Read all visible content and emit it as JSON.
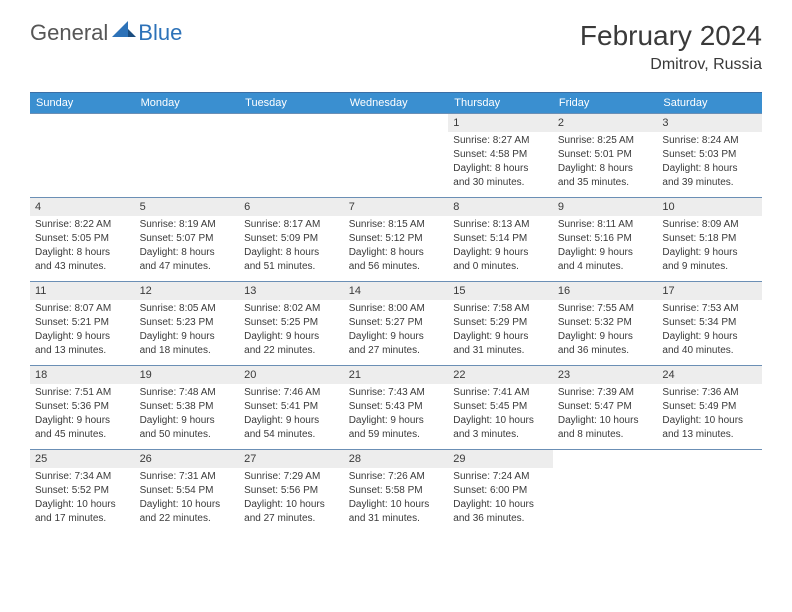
{
  "brand": {
    "general": "General",
    "blue": "Blue"
  },
  "title": "February 2024",
  "location": "Dmitrov, Russia",
  "day_headers": [
    "Sunday",
    "Monday",
    "Tuesday",
    "Wednesday",
    "Thursday",
    "Friday",
    "Saturday"
  ],
  "header_bg": "#3a8fd0",
  "header_fg": "#ffffff",
  "border_color": "#6b8fb5",
  "daynum_bg": "#ededed",
  "days": [
    {
      "n": "",
      "sr": "",
      "ss": "",
      "dl1": "",
      "dl2": ""
    },
    {
      "n": "",
      "sr": "",
      "ss": "",
      "dl1": "",
      "dl2": ""
    },
    {
      "n": "",
      "sr": "",
      "ss": "",
      "dl1": "",
      "dl2": ""
    },
    {
      "n": "",
      "sr": "",
      "ss": "",
      "dl1": "",
      "dl2": ""
    },
    {
      "n": "1",
      "sr": "Sunrise: 8:27 AM",
      "ss": "Sunset: 4:58 PM",
      "dl1": "Daylight: 8 hours",
      "dl2": "and 30 minutes."
    },
    {
      "n": "2",
      "sr": "Sunrise: 8:25 AM",
      "ss": "Sunset: 5:01 PM",
      "dl1": "Daylight: 8 hours",
      "dl2": "and 35 minutes."
    },
    {
      "n": "3",
      "sr": "Sunrise: 8:24 AM",
      "ss": "Sunset: 5:03 PM",
      "dl1": "Daylight: 8 hours",
      "dl2": "and 39 minutes."
    },
    {
      "n": "4",
      "sr": "Sunrise: 8:22 AM",
      "ss": "Sunset: 5:05 PM",
      "dl1": "Daylight: 8 hours",
      "dl2": "and 43 minutes."
    },
    {
      "n": "5",
      "sr": "Sunrise: 8:19 AM",
      "ss": "Sunset: 5:07 PM",
      "dl1": "Daylight: 8 hours",
      "dl2": "and 47 minutes."
    },
    {
      "n": "6",
      "sr": "Sunrise: 8:17 AM",
      "ss": "Sunset: 5:09 PM",
      "dl1": "Daylight: 8 hours",
      "dl2": "and 51 minutes."
    },
    {
      "n": "7",
      "sr": "Sunrise: 8:15 AM",
      "ss": "Sunset: 5:12 PM",
      "dl1": "Daylight: 8 hours",
      "dl2": "and 56 minutes."
    },
    {
      "n": "8",
      "sr": "Sunrise: 8:13 AM",
      "ss": "Sunset: 5:14 PM",
      "dl1": "Daylight: 9 hours",
      "dl2": "and 0 minutes."
    },
    {
      "n": "9",
      "sr": "Sunrise: 8:11 AM",
      "ss": "Sunset: 5:16 PM",
      "dl1": "Daylight: 9 hours",
      "dl2": "and 4 minutes."
    },
    {
      "n": "10",
      "sr": "Sunrise: 8:09 AM",
      "ss": "Sunset: 5:18 PM",
      "dl1": "Daylight: 9 hours",
      "dl2": "and 9 minutes."
    },
    {
      "n": "11",
      "sr": "Sunrise: 8:07 AM",
      "ss": "Sunset: 5:21 PM",
      "dl1": "Daylight: 9 hours",
      "dl2": "and 13 minutes."
    },
    {
      "n": "12",
      "sr": "Sunrise: 8:05 AM",
      "ss": "Sunset: 5:23 PM",
      "dl1": "Daylight: 9 hours",
      "dl2": "and 18 minutes."
    },
    {
      "n": "13",
      "sr": "Sunrise: 8:02 AM",
      "ss": "Sunset: 5:25 PM",
      "dl1": "Daylight: 9 hours",
      "dl2": "and 22 minutes."
    },
    {
      "n": "14",
      "sr": "Sunrise: 8:00 AM",
      "ss": "Sunset: 5:27 PM",
      "dl1": "Daylight: 9 hours",
      "dl2": "and 27 minutes."
    },
    {
      "n": "15",
      "sr": "Sunrise: 7:58 AM",
      "ss": "Sunset: 5:29 PM",
      "dl1": "Daylight: 9 hours",
      "dl2": "and 31 minutes."
    },
    {
      "n": "16",
      "sr": "Sunrise: 7:55 AM",
      "ss": "Sunset: 5:32 PM",
      "dl1": "Daylight: 9 hours",
      "dl2": "and 36 minutes."
    },
    {
      "n": "17",
      "sr": "Sunrise: 7:53 AM",
      "ss": "Sunset: 5:34 PM",
      "dl1": "Daylight: 9 hours",
      "dl2": "and 40 minutes."
    },
    {
      "n": "18",
      "sr": "Sunrise: 7:51 AM",
      "ss": "Sunset: 5:36 PM",
      "dl1": "Daylight: 9 hours",
      "dl2": "and 45 minutes."
    },
    {
      "n": "19",
      "sr": "Sunrise: 7:48 AM",
      "ss": "Sunset: 5:38 PM",
      "dl1": "Daylight: 9 hours",
      "dl2": "and 50 minutes."
    },
    {
      "n": "20",
      "sr": "Sunrise: 7:46 AM",
      "ss": "Sunset: 5:41 PM",
      "dl1": "Daylight: 9 hours",
      "dl2": "and 54 minutes."
    },
    {
      "n": "21",
      "sr": "Sunrise: 7:43 AM",
      "ss": "Sunset: 5:43 PM",
      "dl1": "Daylight: 9 hours",
      "dl2": "and 59 minutes."
    },
    {
      "n": "22",
      "sr": "Sunrise: 7:41 AM",
      "ss": "Sunset: 5:45 PM",
      "dl1": "Daylight: 10 hours",
      "dl2": "and 3 minutes."
    },
    {
      "n": "23",
      "sr": "Sunrise: 7:39 AM",
      "ss": "Sunset: 5:47 PM",
      "dl1": "Daylight: 10 hours",
      "dl2": "and 8 minutes."
    },
    {
      "n": "24",
      "sr": "Sunrise: 7:36 AM",
      "ss": "Sunset: 5:49 PM",
      "dl1": "Daylight: 10 hours",
      "dl2": "and 13 minutes."
    },
    {
      "n": "25",
      "sr": "Sunrise: 7:34 AM",
      "ss": "Sunset: 5:52 PM",
      "dl1": "Daylight: 10 hours",
      "dl2": "and 17 minutes."
    },
    {
      "n": "26",
      "sr": "Sunrise: 7:31 AM",
      "ss": "Sunset: 5:54 PM",
      "dl1": "Daylight: 10 hours",
      "dl2": "and 22 minutes."
    },
    {
      "n": "27",
      "sr": "Sunrise: 7:29 AM",
      "ss": "Sunset: 5:56 PM",
      "dl1": "Daylight: 10 hours",
      "dl2": "and 27 minutes."
    },
    {
      "n": "28",
      "sr": "Sunrise: 7:26 AM",
      "ss": "Sunset: 5:58 PM",
      "dl1": "Daylight: 10 hours",
      "dl2": "and 31 minutes."
    },
    {
      "n": "29",
      "sr": "Sunrise: 7:24 AM",
      "ss": "Sunset: 6:00 PM",
      "dl1": "Daylight: 10 hours",
      "dl2": "and 36 minutes."
    },
    {
      "n": "",
      "sr": "",
      "ss": "",
      "dl1": "",
      "dl2": ""
    },
    {
      "n": "",
      "sr": "",
      "ss": "",
      "dl1": "",
      "dl2": ""
    }
  ]
}
